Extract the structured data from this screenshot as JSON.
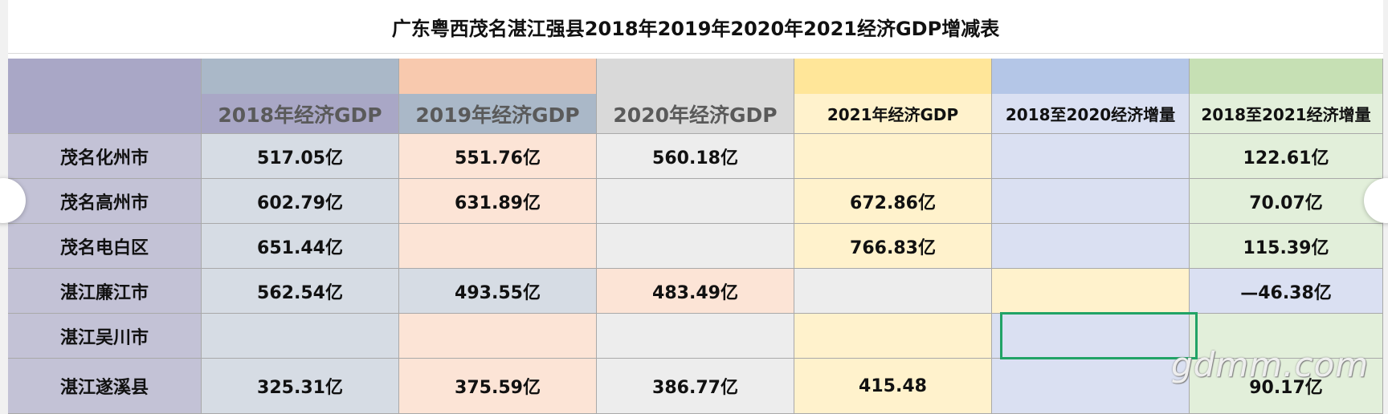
{
  "title": "广东粤西茂名湛江强县2018年2019年2020年2021经济GDP增减表",
  "headers": [
    "",
    "2018年经济GDP",
    "2019年经济GDP",
    "2020年经济GDP",
    "2021年经济GDP",
    "2018至2020经济增量",
    "2018至2021经济增量"
  ],
  "rows": [
    [
      "茂名化州市",
      "517.05亿",
      "551.76亿",
      "560.18亿",
      "",
      "",
      "122.61亿"
    ],
    [
      "茂名高州市",
      "602.79亿",
      "631.89亿",
      "",
      "672.86亿",
      "",
      "70.07亿"
    ],
    [
      "茂名电白区",
      "651.44亿",
      "",
      "",
      "766.83亿",
      "",
      "115.39亿"
    ],
    [
      "湛江廉江市",
      "562.54亿",
      "493.55亿",
      "483.49亿",
      "",
      "",
      "—46.38亿"
    ],
    [
      "湛江吴川市",
      "",
      "",
      "",
      "",
      "",
      ""
    ],
    [
      "湛江遂溪县",
      "325.31亿",
      "375.59亿",
      "386.77亿",
      "415.48",
      "",
      "90.17亿"
    ]
  ],
  "watermark": "gdmm.com",
  "colors": {
    "selection": "#21a366",
    "region_col": "#a9a7c6",
    "col2018": "#aebbc9",
    "col2019": "#f8c9ae",
    "col2020": "#d9d9d9",
    "col2021": "#ffe699",
    "col_inc2020": "#b4c6e7",
    "col_inc2021": "#c6e0b4"
  }
}
